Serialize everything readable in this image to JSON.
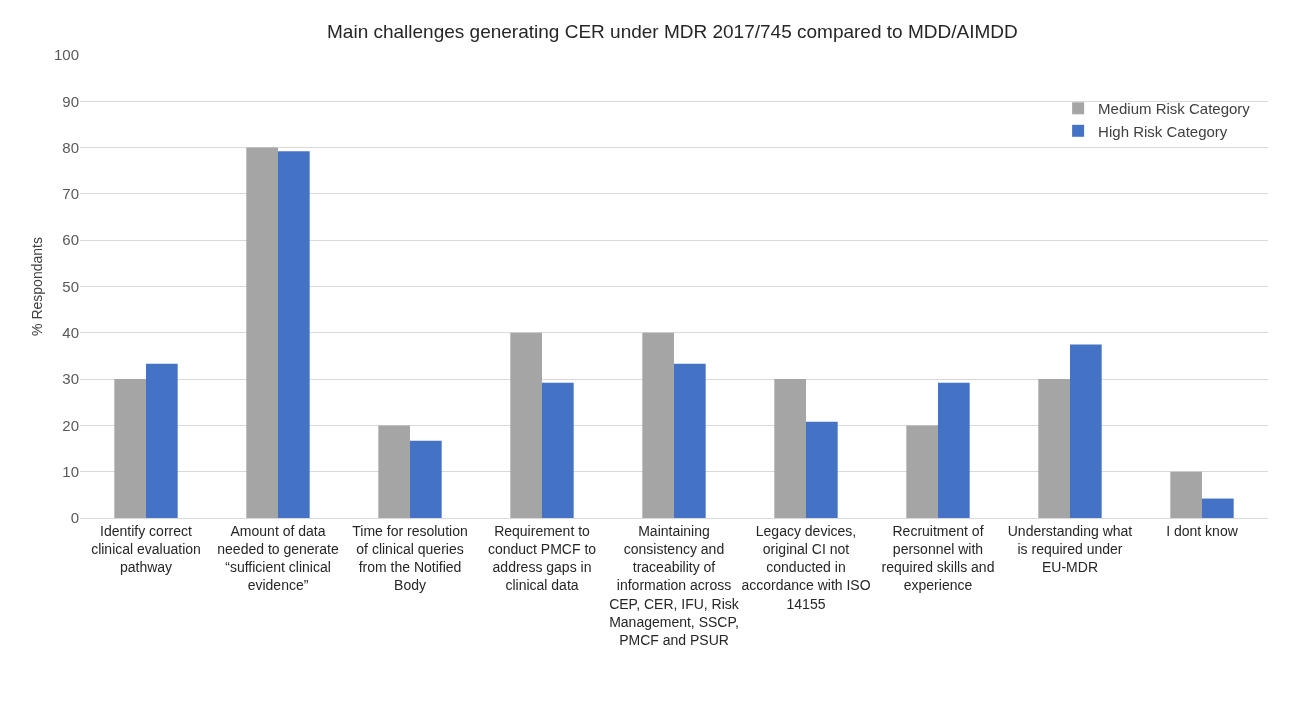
{
  "chart_data": {
    "type": "bar",
    "title": "Main challenges generating CER under MDR 2017/745 compared to MDD/AIMDD",
    "ylabel": "% Respondants",
    "categories": [
      "Identify correct clinical evaluation pathway",
      "Amount of data needed to generate “sufficient clinical evidence”",
      "Time for resolution of clinical queries from the Notified Body",
      "Requirement to conduct PMCF to address gaps in clinical data",
      "Maintaining consistency and traceability of information across CEP, CER, IFU, Risk Management, SSCP, PMCF and PSUR",
      "Legacy devices, original CI not conducted in accordance with ISO 14155",
      "Recruitment of personnel with required skills and experience",
      "Understanding what is required under EU-MDR",
      "I dont know"
    ],
    "series": [
      {
        "name": "Medium Risk Category",
        "color": "#a5a5a5",
        "values": [
          30,
          80,
          20,
          40,
          40,
          30,
          20,
          30,
          10
        ]
      },
      {
        "name": "High Risk Category",
        "color": "#4472c4",
        "values": [
          33.3,
          79.2,
          16.7,
          29.2,
          33.3,
          20.8,
          29.2,
          37.5,
          4.2
        ]
      }
    ],
    "ylim": [
      0,
      100
    ],
    "yticks": [
      0,
      10,
      20,
      30,
      40,
      50,
      60,
      70,
      80,
      90,
      100
    ],
    "grid": "y",
    "legend": "top right"
  }
}
